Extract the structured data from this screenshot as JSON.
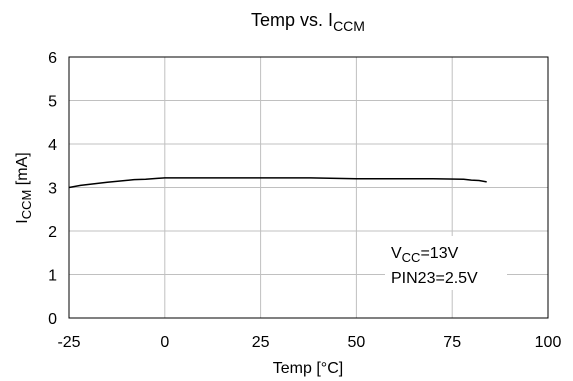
{
  "chart_data": {
    "type": "line",
    "title": {
      "main": "Temp vs. I",
      "sub": "CCM"
    },
    "xlabel": "Temp [°C]",
    "ylabel": {
      "main": "I",
      "sub": "CCM",
      "suffix": " [mA]"
    },
    "xlim": [
      -25,
      100
    ],
    "ylim": [
      0,
      6
    ],
    "xticks": [
      -25,
      0,
      25,
      50,
      75,
      100
    ],
    "yticks": [
      0,
      1,
      2,
      3,
      4,
      5,
      6
    ],
    "grid": true,
    "series": [
      {
        "color": "#000000",
        "x": [
          -25,
          -22,
          -15,
          -8,
          -5,
          -2,
          0,
          25,
          38,
          50,
          60,
          70,
          78,
          80,
          82,
          84
        ],
        "y": [
          3.0,
          3.05,
          3.12,
          3.18,
          3.19,
          3.21,
          3.22,
          3.22,
          3.22,
          3.2,
          3.2,
          3.2,
          3.19,
          3.17,
          3.16,
          3.13
        ]
      }
    ],
    "annotations": [
      {
        "main": "V",
        "sub": "CC",
        "suffix": "=13V"
      },
      {
        "text": "PIN23=2.5V"
      }
    ]
  }
}
